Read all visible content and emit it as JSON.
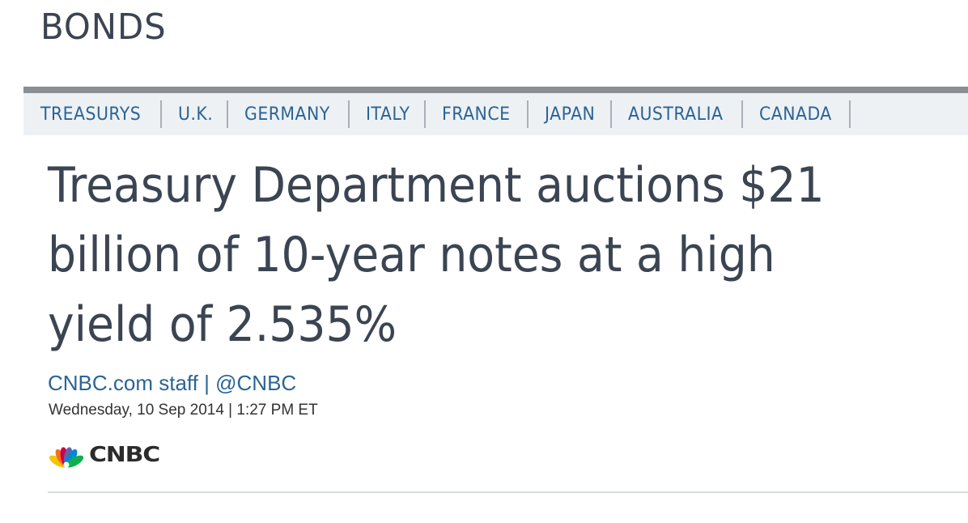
{
  "section": {
    "title": "BONDS"
  },
  "nav": {
    "items": [
      "TREASURYS",
      "U.K.",
      "GERMANY",
      "ITALY",
      "FRANCE",
      "JAPAN",
      "AUSTRALIA",
      "CANADA"
    ]
  },
  "article": {
    "headline": "Treasury Department auctions $21 billion of 10-year notes at a high yield of 2.535%",
    "author": "CNBC.com staff",
    "separator": "|",
    "handle": "@CNBC",
    "dateline": "Wednesday, 10 Sep 2014 | 1:27 PM ET"
  },
  "brand": {
    "wordmark": "CNBC",
    "icon": "nbc-peacock-icon",
    "peacock_colors": [
      "#f5c500",
      "#f37021",
      "#cc004c",
      "#6460aa",
      "#0089d0",
      "#0db14b"
    ]
  },
  "colors": {
    "headline": "#3b4452",
    "link": "#2a6496",
    "nav_background": "#eef1f4",
    "nav_top_border": "#8b8f93"
  }
}
